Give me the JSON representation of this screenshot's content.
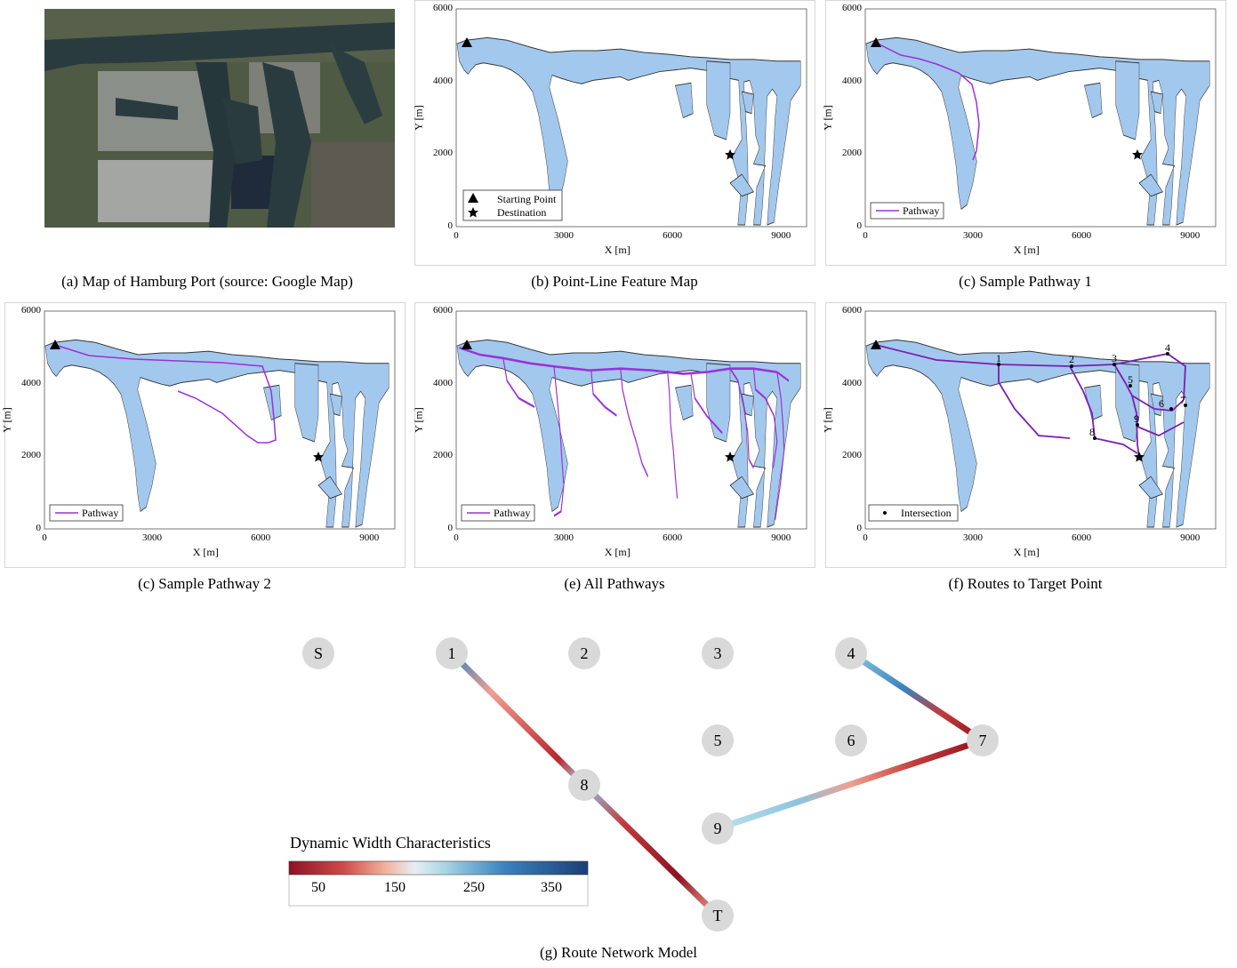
{
  "captions": {
    "a": "(a) Map of Hamburg Port (source: Google Map)",
    "b": "(b) Point-Line Feature Map",
    "c1": "(c) Sample Pathway 1",
    "c2": "(c) Sample Pathway 2",
    "e": "(e) All Pathways",
    "f": "(f) Routes to Target Point",
    "g": "(g) Route Network Model"
  },
  "map_axes": {
    "xlabel": "X [m]",
    "ylabel": "Y [m]",
    "xticks": [
      "0",
      "3000",
      "6000",
      "9000"
    ],
    "yticks": [
      "0",
      "2000",
      "4000",
      "6000"
    ]
  },
  "legends": {
    "start": "Starting Point",
    "destination": "Destination",
    "pathway": "Pathway",
    "intersection": "Intersection"
  },
  "intersection_labels": [
    "1",
    "2",
    "3",
    "4",
    "5",
    "6",
    "7",
    "8",
    "9"
  ],
  "network": {
    "nodes": [
      "S",
      "1",
      "2",
      "3",
      "4",
      "5",
      "6",
      "7",
      "8",
      "9",
      "T"
    ],
    "colorbar_title": "Dynamic Width Characteristics",
    "colorbar_ticks": [
      "50",
      "150",
      "250",
      "350"
    ]
  },
  "colors": {
    "water": "#a3c8ee",
    "pathway": "#9b30d9",
    "node_fill": "#d9d9d9",
    "width_low": "#8c1222",
    "width_high": "#1c3f74"
  }
}
